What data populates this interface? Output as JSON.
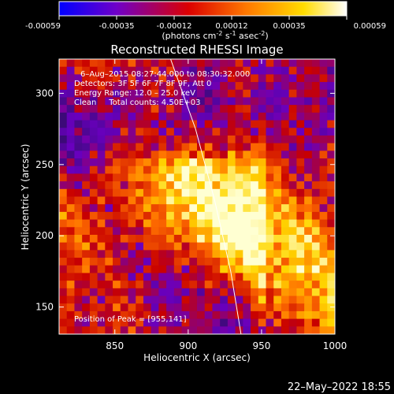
{
  "colorbar": {
    "ticks": [
      "-0.00059",
      "-0.00035",
      "-0.00012",
      "0.00012",
      "0.00035",
      "0.00059"
    ],
    "unit_text": "(photons cm",
    "unit_sup1": "-2",
    "unit_mid": " s",
    "unit_sup2": "-1",
    "unit_end": " asec",
    "unit_sup3": "-2",
    "unit_close": ")",
    "range": [
      -0.00059,
      0.00059
    ],
    "colors": [
      "#0000ff",
      "#6f00c8",
      "#dc0000",
      "#ff7800",
      "#ffdc00",
      "#ffffff"
    ]
  },
  "chart_data": {
    "type": "heatmap",
    "title": "Reconstructed RHESSI Image",
    "xlabel": "Heliocentric X (arcsec)",
    "ylabel": "Heliocentric Y (arcsec)",
    "xlim": [
      812,
      1000
    ],
    "ylim": [
      131,
      324
    ],
    "x_ticks": [
      850,
      900,
      950,
      1000
    ],
    "y_ticks": [
      150,
      200,
      250,
      300
    ],
    "info_lines": [
      "6–Aug–2015 08:27:44.000 to 08:30:32.000",
      "Detectors: 3F 5F 6F 7F 8F 9F, Att 0",
      "Energy Range: 12.0 – 25.0 keV",
      "Clean     Total counts: 4.50E+03"
    ],
    "peak_text": "Position of Peak = [955,141]",
    "peak_position": [
      955,
      141
    ],
    "limb_curve": [
      [
        888,
        324
      ],
      [
        905,
        275
      ],
      [
        918,
        225
      ],
      [
        929,
        175
      ],
      [
        936,
        131
      ]
    ]
  },
  "footer": {
    "timestamp": "22–May–2022 18:55"
  }
}
